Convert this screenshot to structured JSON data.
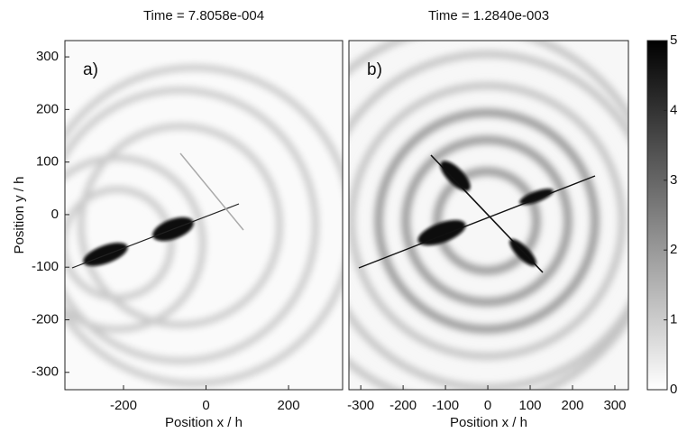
{
  "chart_data": [
    {
      "type": "heatmap",
      "title": "Time = 7.8058e-004",
      "panel_label": "a)",
      "xlabel": "Position x / h",
      "ylabel": "Position y / h",
      "xlim": [
        -342,
        331
      ],
      "ylim": [
        -333,
        331
      ],
      "xticks": [
        -200,
        0,
        200
      ],
      "yticks": [
        -300,
        -200,
        -100,
        0,
        100,
        200,
        300
      ],
      "grid": false
    },
    {
      "type": "heatmap",
      "title": "Time = 1.2840e-003",
      "panel_label": "b)",
      "xlabel": "Position x / h",
      "xlim": [
        -328,
        332
      ],
      "ylim": [
        -333,
        331
      ],
      "xticks": [
        -300,
        -200,
        -100,
        0,
        100,
        200,
        300
      ],
      "grid": false,
      "colorbar": {
        "lim": [
          0,
          5
        ],
        "ticks": [
          0,
          1,
          2,
          3,
          4,
          5
        ]
      }
    }
  ]
}
